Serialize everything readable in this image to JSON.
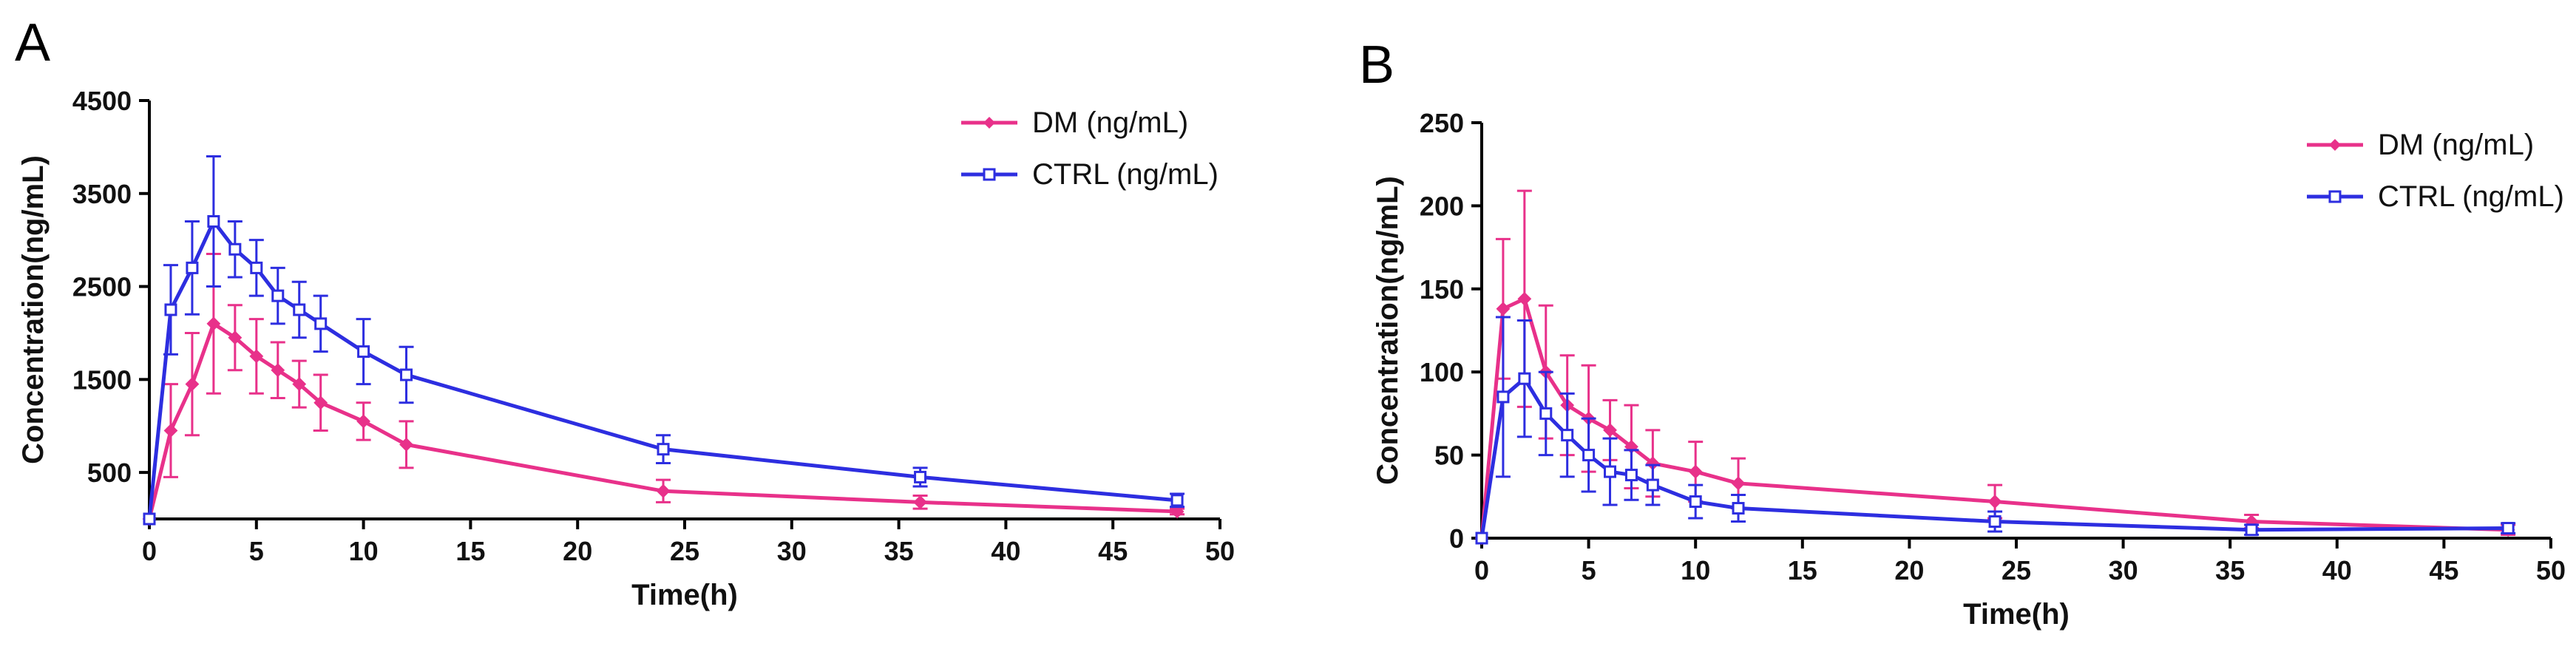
{
  "colors": {
    "dm": "#e8318a",
    "ctrl": "#2d2ee0",
    "axis": "#000000"
  },
  "chart_data": [
    {
      "type": "line",
      "panel_label": "A",
      "xlabel": "Time(h)",
      "ylabel": "Concentration(ng/mL)",
      "xlim": [
        0,
        50
      ],
      "ylim": [
        0,
        4500
      ],
      "x_ticks": [
        0,
        5,
        10,
        15,
        20,
        25,
        30,
        35,
        40,
        45,
        50
      ],
      "y_ticks": [
        500,
        1500,
        2500,
        3500,
        4500
      ],
      "y_tick_labels": [
        "500",
        "1500",
        "2500",
        "3500",
        "4500"
      ],
      "legend_position": "top-right",
      "series": [
        {
          "name": "DM",
          "legend_unit": "(ng/mL)",
          "color_key": "dm",
          "marker": "diamond",
          "x": [
            0,
            1,
            2,
            3,
            4,
            5,
            6,
            7,
            8,
            10,
            12,
            24,
            36,
            48
          ],
          "values": [
            0,
            950,
            1450,
            2100,
            1950,
            1750,
            1600,
            1450,
            1250,
            1050,
            800,
            300,
            180,
            80
          ],
          "errors": [
            0,
            500,
            550,
            750,
            350,
            400,
            300,
            250,
            300,
            200,
            250,
            120,
            70,
            30
          ]
        },
        {
          "name": "CTRL",
          "legend_unit": "(ng/mL)",
          "color_key": "ctrl",
          "marker": "square",
          "x": [
            0,
            1,
            2,
            3,
            4,
            5,
            6,
            7,
            8,
            10,
            12,
            24,
            36,
            48
          ],
          "values": [
            0,
            2250,
            2700,
            3200,
            2900,
            2700,
            2400,
            2250,
            2100,
            1800,
            1550,
            750,
            450,
            200
          ],
          "errors": [
            0,
            480,
            500,
            700,
            300,
            300,
            300,
            300,
            300,
            350,
            300,
            150,
            100,
            70
          ]
        }
      ]
    },
    {
      "type": "line",
      "panel_label": "B",
      "xlabel": "Time(h)",
      "ylabel": "Concentration(ng/mL)",
      "xlim": [
        0,
        50
      ],
      "ylim": [
        0,
        250
      ],
      "x_ticks": [
        0,
        5,
        10,
        15,
        20,
        25,
        30,
        35,
        40,
        45,
        50
      ],
      "y_ticks": [
        0,
        50,
        100,
        150,
        200,
        250
      ],
      "y_tick_labels": [
        "0",
        "50",
        "100",
        "150",
        "200",
        "250"
      ],
      "legend_position": "top-right",
      "series": [
        {
          "name": "DM",
          "legend_unit": "(ng/mL)",
          "color_key": "dm",
          "marker": "diamond",
          "x": [
            0,
            1,
            2,
            3,
            4,
            5,
            6,
            7,
            8,
            10,
            12,
            24,
            36,
            48
          ],
          "values": [
            0,
            138,
            144,
            100,
            80,
            72,
            65,
            55,
            45,
            40,
            33,
            22,
            10,
            5
          ],
          "errors": [
            0,
            42,
            65,
            40,
            30,
            32,
            18,
            25,
            20,
            18,
            15,
            10,
            4,
            3
          ]
        },
        {
          "name": "CTRL",
          "legend_unit": "(ng/mL)",
          "color_key": "ctrl",
          "marker": "square",
          "x": [
            0,
            1,
            2,
            3,
            4,
            5,
            6,
            7,
            8,
            10,
            12,
            24,
            36,
            48
          ],
          "values": [
            0,
            85,
            96,
            75,
            62,
            50,
            40,
            38,
            32,
            22,
            18,
            10,
            5,
            6
          ],
          "errors": [
            0,
            48,
            35,
            25,
            25,
            22,
            20,
            15,
            12,
            10,
            8,
            6,
            3,
            3
          ]
        }
      ]
    }
  ]
}
